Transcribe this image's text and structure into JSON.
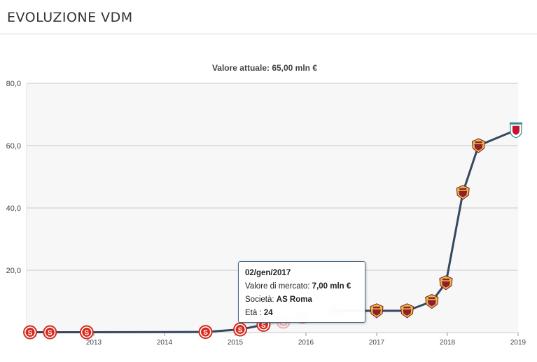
{
  "header": {
    "title": "EVOLUZIONE VDM"
  },
  "chart_data": {
    "type": "line",
    "title": "Valore attuale: 65,00 mln €",
    "xlabel": "",
    "ylabel": "",
    "xlim": [
      2012.05,
      2019.0
    ],
    "ylim": [
      0,
      80
    ],
    "yticks": [
      "80,0",
      "60,0",
      "40,0",
      "20,0"
    ],
    "ytick_values": [
      80,
      60,
      40,
      20
    ],
    "xticks": [
      "2013",
      "2014",
      "2015",
      "2016",
      "2017",
      "2018",
      "2019"
    ],
    "xtick_values": [
      2013,
      2014,
      2015,
      2016,
      2017,
      2018,
      2019
    ],
    "grid": true,
    "series": [
      {
        "line_color": "#34495e",
        "points": [
          {
            "x": 2012.1,
            "y": 0.1,
            "club": "inter"
          },
          {
            "x": 2012.38,
            "y": 0.1,
            "club": "inter"
          },
          {
            "x": 2012.9,
            "y": 0.1,
            "club": "inter"
          },
          {
            "x": 2014.58,
            "y": 0.2,
            "club": "inter"
          },
          {
            "x": 2015.07,
            "y": 1.0,
            "club": "inter"
          },
          {
            "x": 2015.4,
            "y": 2.5,
            "club": "inter"
          },
          {
            "x": 2015.68,
            "y": 3.5,
            "club": "inter"
          },
          {
            "x": 2015.95,
            "y": 5.0,
            "club": "inter"
          },
          {
            "x": 2016.42,
            "y": 7.0,
            "club": "inter"
          },
          {
            "x": 2017.0,
            "y": 7.0,
            "club": "roma"
          },
          {
            "x": 2017.43,
            "y": 7.0,
            "club": "roma"
          },
          {
            "x": 2017.78,
            "y": 10.0,
            "club": "roma"
          },
          {
            "x": 2017.98,
            "y": 16.0,
            "club": "roma"
          },
          {
            "x": 2018.22,
            "y": 45.0,
            "club": "roma"
          },
          {
            "x": 2018.44,
            "y": 60.0,
            "club": "roma"
          },
          {
            "x": 2018.97,
            "y": 65.0,
            "club": "liverpool"
          }
        ]
      }
    ],
    "faded_range": [
      5,
      8
    ]
  },
  "tooltip": {
    "date": "02/gen/2017",
    "value_label": "Valore di mercato:",
    "value": "7,00 mln €",
    "club_label": "Società:",
    "club": "AS Roma",
    "age_label": "Età :",
    "age": "24"
  },
  "colors": {
    "inter": "#d52b1e",
    "roma": "#8e1f2f",
    "roma_gold": "#f0bc42",
    "liverpool": "#c8102e",
    "line": "#34495e",
    "plot_bg": "#f7f7f7"
  }
}
